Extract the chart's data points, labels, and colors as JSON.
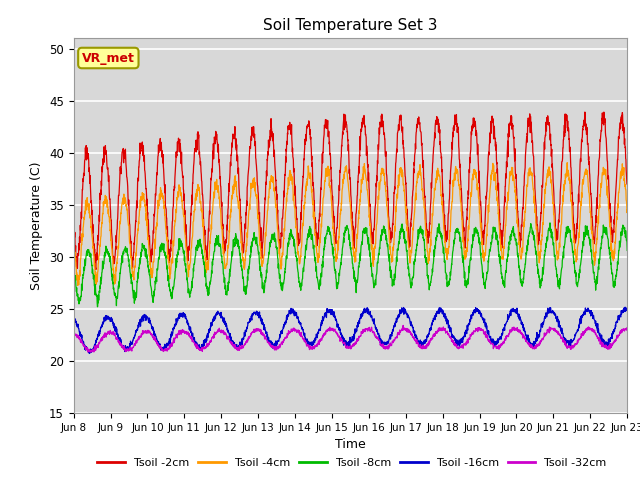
{
  "title": "Soil Temperature Set 3",
  "xlabel": "Time",
  "ylabel": "Soil Temperature (C)",
  "ylim": [
    15,
    51
  ],
  "yticks": [
    15,
    20,
    25,
    30,
    35,
    40,
    45,
    50
  ],
  "background_color": "#ffffff",
  "plot_bg_color": "#d8d8d8",
  "grid_color": "#ffffff",
  "annotation_text": "VR_met",
  "annotation_bg": "#ffff99",
  "annotation_border": "#999900",
  "annotation_text_color": "#cc0000",
  "line_colors": {
    "Tsoil -2cm": "#dd0000",
    "Tsoil -4cm": "#ff9900",
    "Tsoil -8cm": "#00bb00",
    "Tsoil -16cm": "#0000cc",
    "Tsoil -32cm": "#cc00cc"
  },
  "legend_labels": [
    "Tsoil -2cm",
    "Tsoil -4cm",
    "Tsoil -8cm",
    "Tsoil -16cm",
    "Tsoil -32cm"
  ],
  "x_tick_labels": [
    "Jun 8",
    "Jun 9",
    "Jun 10",
    "Jun 11",
    "Jun 12",
    "Jun 13",
    "Jun 14",
    "Jun 15",
    "Jun 16",
    "Jun 17",
    "Jun 18",
    "Jun 19",
    "Jun 20",
    "Jun 21",
    "Jun 22",
    "Jun 23"
  ],
  "n_days": 15,
  "points_per_day": 144
}
